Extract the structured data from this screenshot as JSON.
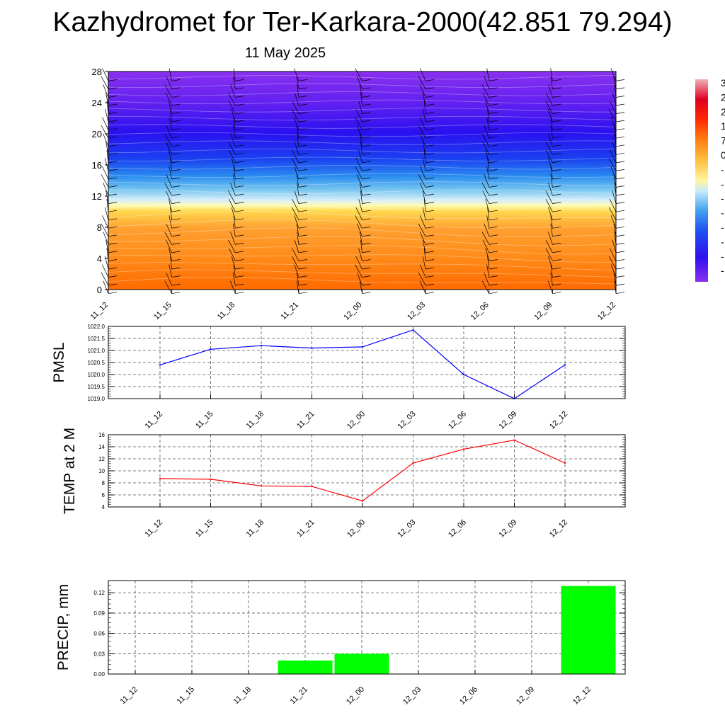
{
  "header": {
    "title": "Kazhydromet for Ter-Karkara-2000(42.851 79.294)",
    "date": "11 May 2025"
  },
  "colors": {
    "pmsl_line": "#0000ff",
    "temp_line": "#ff0000",
    "precip_bar": "#00ff00",
    "grid": "#555555"
  },
  "time_labels": [
    "11_12",
    "11_15",
    "11_18",
    "11_21",
    "12_00",
    "12_03",
    "12_06",
    "12_09",
    "12_12"
  ],
  "chart_data": [
    {
      "id": "cross_section",
      "type": "heatmap",
      "x": [
        "11_12",
        "11_15",
        "11_18",
        "11_21",
        "12_00",
        "12_03",
        "12_06",
        "12_09",
        "12_12"
      ],
      "ylim": [
        0,
        28
      ],
      "yticks": [
        "0",
        "4",
        "8",
        "12",
        "16",
        "20",
        "24",
        "28"
      ],
      "colorbar_labels": [
        "3",
        "2",
        "2",
        "1",
        "7",
        "0",
        "-",
        "-",
        "-",
        "-",
        "-",
        "-",
        "-",
        "-"
      ]
    },
    {
      "id": "pmsl",
      "type": "line",
      "ylabel": "PMSL",
      "x": [
        "11_12",
        "11_15",
        "11_18",
        "11_21",
        "12_00",
        "12_03",
        "12_06",
        "12_09",
        "12_12"
      ],
      "values": [
        1020.4,
        1021.05,
        1021.2,
        1021.1,
        1021.15,
        1021.85,
        1020.0,
        1019.0,
        1020.4
      ],
      "ylim": [
        1019.0,
        1022.0
      ],
      "yticks": [
        "1019.0",
        "1019.5",
        "1020.0",
        "1020.5",
        "1021.0",
        "1021.5",
        "1022.0"
      ]
    },
    {
      "id": "temp",
      "type": "line",
      "ylabel": "TEMP at 2 M",
      "x": [
        "11_12",
        "11_15",
        "11_18",
        "11_21",
        "12_00",
        "12_03",
        "12_06",
        "12_09",
        "12_12"
      ],
      "values": [
        8.7,
        8.6,
        7.5,
        7.4,
        5.0,
        11.3,
        13.6,
        15.1,
        11.3
      ],
      "ylim": [
        4,
        16
      ],
      "yticks": [
        "4",
        "6",
        "8",
        "10",
        "12",
        "14",
        "16"
      ]
    },
    {
      "id": "precip",
      "type": "bar",
      "ylabel": "PRECIP, mm",
      "categories": [
        "11_12",
        "11_15",
        "11_18",
        "11_21",
        "12_00",
        "12_03",
        "12_06",
        "12_09",
        "12_12"
      ],
      "values": [
        0,
        0,
        0,
        0.02,
        0.03,
        0,
        0,
        0,
        0.13
      ],
      "ylim": [
        0,
        0.138
      ],
      "yticks": [
        "0.00",
        "0.03",
        "0.06",
        "0.09",
        "0.12"
      ]
    }
  ]
}
